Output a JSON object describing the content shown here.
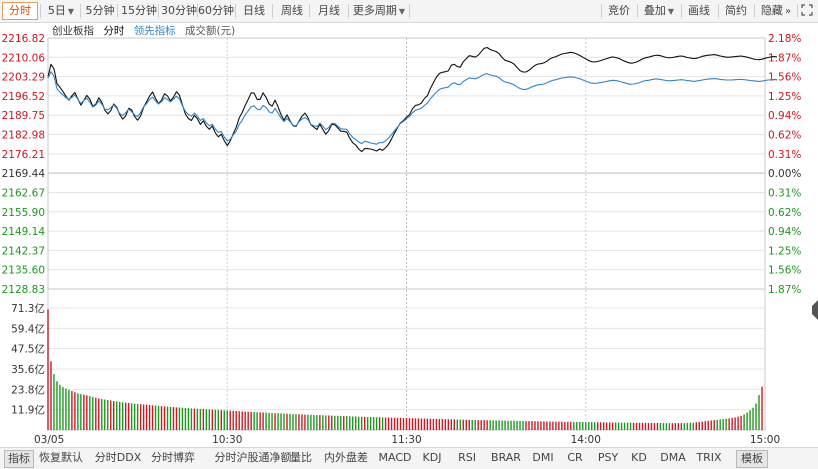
{
  "toolbar": {
    "left": [
      {
        "label": "分时",
        "active": true,
        "dropdown": false
      },
      {
        "label": "5日",
        "active": false,
        "dropdown": true
      },
      {
        "label": "5分钟",
        "active": false,
        "dropdown": false
      },
      {
        "label": "15分钟",
        "active": false,
        "dropdown": false
      },
      {
        "label": "30分钟",
        "active": false,
        "dropdown": false
      },
      {
        "label": "60分钟",
        "active": false,
        "dropdown": false
      },
      {
        "label": "日线",
        "active": false,
        "dropdown": false
      },
      {
        "label": "周线",
        "active": false,
        "dropdown": false
      },
      {
        "label": "月线",
        "active": false,
        "dropdown": false
      },
      {
        "label": "更多周期",
        "active": false,
        "dropdown": true
      }
    ],
    "right": [
      {
        "label": "竞价",
        "dropdown": false
      },
      {
        "label": "叠加",
        "dropdown": true
      },
      {
        "label": "画线",
        "dropdown": false
      },
      {
        "label": "简约",
        "dropdown": false
      },
      {
        "label": "隐藏",
        "dropdown": false
      }
    ],
    "icons": [
      "double-chevron-right-icon",
      "expand-icon"
    ]
  },
  "legend": {
    "name": "创业板指",
    "mode": "分时",
    "leading": "领先指标",
    "volume": "成交额(元)"
  },
  "colors": {
    "price_line": "#111111",
    "leading_line": "#2f86c8",
    "up": "#d4141e",
    "down": "#1a9a1a",
    "flat": "#333333",
    "grid": "#e4e4e4",
    "grid_dashed": "#cfcfcf"
  },
  "chart_data": [
    {
      "type": "line",
      "title": "",
      "time_ticks": [
        "03/05",
        "10:30",
        "11:30",
        "14:00",
        "15:00"
      ],
      "ylim": [
        2128.83,
        2216.82
      ],
      "prev_close": 2169.44,
      "y_ticks": [
        "2216.82",
        "2210.06",
        "2203.29",
        "2196.52",
        "2189.75",
        "2182.98",
        "2176.21",
        "2169.44",
        "2162.67",
        "2155.90",
        "2149.14",
        "2142.37",
        "2135.60",
        "2128.83"
      ],
      "pct_ticks": [
        "2.18%",
        "1.87%",
        "1.56%",
        "1.25%",
        "0.94%",
        "0.62%",
        "0.31%",
        "0.00%",
        "0.31%",
        "0.62%",
        "0.94%",
        "1.25%",
        "1.56%",
        "1.87%"
      ],
      "series": [
        {
          "role": "price",
          "values": [
            2203.3,
            2207.6,
            2206.0,
            2200.8,
            2199.5,
            2198.1,
            2196.4,
            2195.0,
            2196.6,
            2197.7,
            2195.4,
            2193.3,
            2194.9,
            2196.7,
            2195.4,
            2192.9,
            2193.6,
            2195.9,
            2194.3,
            2191.5,
            2190.2,
            2191.3,
            2193.7,
            2192.6,
            2190.0,
            2188.4,
            2189.5,
            2192.2,
            2191.6,
            2189.3,
            2188.0,
            2189.5,
            2192.5,
            2194.5,
            2196.5,
            2197.9,
            2195.6,
            2193.8,
            2195.0,
            2197.3,
            2196.5,
            2194.8,
            2196.1,
            2198.0,
            2196.8,
            2193.4,
            2190.2,
            2188.6,
            2187.9,
            2189.7,
            2188.5,
            2186.5,
            2187.8,
            2185.9,
            2184.8,
            2186.0,
            2183.6,
            2182.2,
            2183.1,
            2180.8,
            2179.1,
            2180.7,
            2183.2,
            2185.5,
            2188.8,
            2190.7,
            2193.2,
            2195.3,
            2197.6,
            2197.5,
            2195.3,
            2195.3,
            2197.6,
            2196.0,
            2193.7,
            2192.9,
            2195.0,
            2192.7,
            2190.0,
            2188.0,
            2189.9,
            2187.8,
            2186.1,
            2185.8,
            2187.6,
            2189.4,
            2190.5,
            2188.9,
            2186.4,
            2185.6,
            2184.7,
            2186.6,
            2184.7,
            2183.1,
            2184.4,
            2186.6,
            2186.4,
            2185.3,
            2184.1,
            2184.1,
            2183.8,
            2181.7,
            2180.1,
            2179.3,
            2177.9,
            2177.0,
            2178.1,
            2178.0,
            2177.9,
            2177.6,
            2177.2,
            2177.9,
            2177.4,
            2178.4,
            2179.6,
            2181.5,
            2183.6,
            2185.4,
            2187.1,
            2187.9,
            2189.1,
            2189.9,
            2192.0,
            2193.2,
            2193.4,
            2194.0,
            2195.6,
            2196.6,
            2199.1,
            2201.1,
            2203.1,
            2204.4,
            2204.8,
            2205.0,
            2205.3,
            2207.3,
            2207.6,
            2206.8,
            2206.6,
            2208.5,
            2209.6,
            2210.6,
            2210.4,
            2210.1,
            2210.8,
            2212.0,
            2213.2,
            2213.5,
            2212.8,
            2212.4,
            2212.1,
            2211.3,
            2210.0,
            2209.0,
            2208.7,
            2208.3,
            2207.7,
            2206.5,
            2205.4,
            2204.9,
            2204.9,
            2205.5,
            2206.4,
            2207.2,
            2207.7,
            2207.8,
            2208.1,
            2208.7,
            2209.5,
            2210.0,
            2210.3,
            2210.8,
            2211.2,
            2211.4,
            2211.6,
            2211.8,
            2211.6,
            2211.2,
            2210.7,
            2210.1,
            2209.5,
            2208.9,
            2208.5,
            2208.4,
            2208.6,
            2208.9,
            2209.3,
            2209.6,
            2209.9,
            2210.2,
            2210.0,
            2209.7,
            2209.2,
            2208.7,
            2208.3,
            2208.0,
            2208.1,
            2208.4,
            2208.9,
            2209.5,
            2209.9,
            2210.1,
            2210.4,
            2210.7,
            2210.8,
            2210.6,
            2210.3,
            2210.0,
            2209.9,
            2210.0,
            2210.2,
            2210.4,
            2210.5,
            2210.3,
            2210.0,
            2209.8,
            2209.6,
            2209.7,
            2210.0,
            2210.4,
            2210.6,
            2210.8,
            2210.9,
            2211.0,
            2210.8,
            2210.5,
            2210.3,
            2210.1,
            2210.1,
            2210.2,
            2210.3,
            2210.4,
            2210.5,
            2210.3,
            2210.1,
            2209.8,
            2209.5,
            2209.3,
            2209.2,
            2209.4,
            2209.7,
            2210.0,
            2210.2,
            2210.3,
            2210.2
          ]
        },
        {
          "role": "leading",
          "values": [
            2202.8,
            2205.0,
            2203.4,
            2199.0,
            2197.8,
            2196.9,
            2195.9,
            2195.3,
            2196.0,
            2196.8,
            2195.3,
            2193.9,
            2194.9,
            2195.7,
            2194.3,
            2192.6,
            2193.3,
            2194.8,
            2193.6,
            2191.9,
            2191.6,
            2192.4,
            2193.4,
            2192.2,
            2190.4,
            2189.6,
            2190.6,
            2191.9,
            2191.0,
            2189.9,
            2189.3,
            2190.7,
            2192.7,
            2193.8,
            2195.3,
            2196.1,
            2194.7,
            2193.7,
            2194.5,
            2195.9,
            2195.3,
            2194.4,
            2195.4,
            2196.4,
            2195.5,
            2193.1,
            2191.1,
            2190.0,
            2189.4,
            2190.5,
            2189.4,
            2187.9,
            2188.6,
            2187.1,
            2186.1,
            2186.6,
            2184.9,
            2183.8,
            2184.0,
            2182.1,
            2180.7,
            2181.3,
            2182.8,
            2184.1,
            2186.5,
            2188.0,
            2189.9,
            2191.3,
            2192.8,
            2193.0,
            2191.9,
            2191.7,
            2193.2,
            2192.5,
            2190.9,
            2190.5,
            2192.2,
            2190.5,
            2188.8,
            2187.5,
            2188.6,
            2187.5,
            2186.3,
            2186.0,
            2187.4,
            2188.4,
            2188.9,
            2188.2,
            2186.5,
            2186.1,
            2185.8,
            2187.0,
            2185.9,
            2184.7,
            2185.4,
            2186.9,
            2186.8,
            2185.9,
            2185.0,
            2184.9,
            2184.8,
            2183.2,
            2182.0,
            2181.2,
            2180.4,
            2179.8,
            2180.6,
            2180.4,
            2180.0,
            2179.8,
            2179.6,
            2180.2,
            2180.1,
            2180.8,
            2181.8,
            2183.0,
            2184.4,
            2185.6,
            2186.9,
            2187.6,
            2188.5,
            2189.3,
            2190.6,
            2191.5,
            2191.8,
            2192.2,
            2193.2,
            2194.0,
            2195.5,
            2196.7,
            2197.9,
            2198.8,
            2199.2,
            2199.4,
            2199.6,
            2200.7,
            2201.1,
            2200.6,
            2200.5,
            2201.6,
            2202.2,
            2202.8,
            2202.7,
            2202.5,
            2202.9,
            2203.5,
            2204.1,
            2204.3,
            2203.9,
            2203.6,
            2203.4,
            2202.9,
            2202.0,
            2201.4,
            2201.2,
            2200.8,
            2200.4,
            2199.7,
            2199.1,
            2198.8,
            2198.8,
            2199.2,
            2199.7,
            2200.1,
            2200.4,
            2200.5,
            2200.7,
            2201.1,
            2201.6,
            2202.0,
            2202.2,
            2202.5,
            2202.8,
            2202.9,
            2203.1,
            2203.2,
            2203.1,
            2202.8,
            2202.5,
            2202.1,
            2201.7,
            2201.3,
            2201.0,
            2200.9,
            2201.0,
            2201.2,
            2201.4,
            2201.6,
            2201.8,
            2202.0,
            2201.9,
            2201.7,
            2201.4,
            2201.1,
            2200.8,
            2200.6,
            2200.7,
            2200.9,
            2201.2,
            2201.6,
            2201.9,
            2202.0,
            2202.2,
            2202.4,
            2202.4,
            2202.3,
            2202.1,
            2201.9,
            2201.8,
            2201.9,
            2202.0,
            2202.1,
            2202.2,
            2202.1,
            2201.9,
            2201.8,
            2201.6,
            2201.7,
            2201.9,
            2202.1,
            2202.3,
            2202.4,
            2202.5,
            2202.6,
            2202.5,
            2202.3,
            2202.2,
            2202.1,
            2202.1,
            2202.1,
            2202.2,
            2202.3,
            2202.3,
            2202.2,
            2202.1,
            2201.9,
            2201.8,
            2201.7,
            2201.6,
            2201.7,
            2201.9,
            2202.1,
            2202.2,
            2202.3,
            2202.2
          ]
        }
      ]
    },
    {
      "type": "bar",
      "title": "",
      "ylabel": "成交额(元)",
      "y_ticks": [
        "71.3亿",
        "59.4亿",
        "47.5亿",
        "35.6亿",
        "23.8亿",
        "11.9亿"
      ],
      "ylim": [
        0,
        71.3
      ],
      "unit": "亿",
      "values_note_colors": "red=up, green=down",
      "values": [
        70.5,
        40.2,
        32.6,
        28.5,
        26.4,
        25.1,
        24.2,
        23.5,
        22.8,
        22.1,
        21.4,
        21.0,
        20.6,
        20.2,
        19.8,
        19.3,
        18.9,
        18.5,
        18.1,
        17.8,
        17.5,
        17.2,
        16.9,
        16.7,
        16.4,
        16.2,
        16.0,
        15.8,
        15.6,
        15.4,
        15.3,
        15.1,
        14.9,
        14.8,
        14.6,
        14.4,
        14.3,
        14.1,
        14.0,
        13.8,
        13.7,
        13.5,
        13.4,
        13.2,
        13.1,
        13.0,
        12.9,
        12.8,
        12.6,
        12.5,
        12.4,
        12.3,
        12.2,
        12.1,
        12.0,
        11.9,
        11.8,
        11.7,
        11.6,
        11.5,
        11.4,
        11.3,
        11.2,
        11.1,
        11.0,
        10.9,
        10.8,
        10.7,
        10.6,
        10.5,
        10.4,
        10.3,
        10.2,
        10.1,
        10.0,
        9.9,
        9.8,
        9.8,
        9.7,
        9.6,
        9.5,
        9.4,
        9.3,
        9.3,
        9.2,
        9.1,
        9.0,
        9.0,
        8.9,
        8.8,
        8.7,
        8.7,
        8.6,
        8.5,
        8.5,
        8.4,
        8.3,
        8.3,
        8.2,
        8.1,
        8.1,
        8.0,
        7.9,
        7.9,
        7.8,
        7.8,
        7.7,
        7.6,
        7.6,
        7.5,
        7.5,
        7.4,
        7.4,
        7.3,
        7.3,
        7.2,
        7.2,
        7.1,
        7.1,
        7.0,
        7.0,
        6.9,
        6.9,
        6.8,
        6.8,
        6.7,
        6.7,
        6.6,
        6.6,
        6.5,
        6.5,
        6.4,
        6.4,
        6.3,
        6.3,
        6.2,
        6.2,
        6.1,
        6.1,
        6.0,
        6.0,
        6.0,
        5.9,
        5.9,
        5.8,
        5.8,
        5.8,
        5.7,
        5.7,
        5.6,
        5.6,
        5.6,
        5.5,
        5.5,
        5.4,
        5.4,
        5.4,
        5.3,
        5.3,
        5.3,
        5.2,
        5.2,
        5.2,
        5.1,
        5.1,
        5.1,
        5.0,
        5.0,
        5.0,
        4.9,
        4.9,
        4.9,
        4.8,
        4.8,
        4.8,
        4.8,
        4.7,
        4.7,
        4.7,
        4.6,
        4.6,
        4.6,
        4.6,
        4.5,
        4.5,
        4.5,
        4.5,
        4.4,
        4.4,
        4.4,
        4.4,
        4.3,
        4.3,
        4.3,
        4.3,
        4.3,
        4.2,
        4.2,
        4.2,
        4.2,
        4.2,
        4.1,
        4.1,
        4.1,
        4.1,
        4.1,
        4.0,
        4.0,
        4.0,
        4.0,
        4.0,
        4.0,
        4.0,
        4.0,
        4.1,
        4.2,
        4.3,
        4.5,
        4.7,
        4.9,
        5.2,
        5.4,
        5.6,
        5.8,
        6.0,
        6.2,
        6.4,
        6.6,
        6.8,
        7.1,
        7.4,
        7.8,
        8.3,
        9.1,
        10.2,
        11.5,
        13.0,
        15.5,
        20.4,
        25.3
      ]
    }
  ],
  "bottombar": [
    {
      "label": "指标",
      "active": true
    },
    {
      "label": "恢复默认",
      "active": false
    },
    {
      "label": "分时DDX",
      "active": false
    },
    {
      "label": "分时博弈",
      "active": false
    },
    {
      "label": "分时沪股通净额",
      "active": false
    },
    {
      "label": "量比",
      "active": false
    },
    {
      "label": "内外盘差",
      "active": false
    },
    {
      "label": "MACD",
      "active": false
    },
    {
      "label": "KDJ",
      "active": false
    },
    {
      "label": "RSI",
      "active": false
    },
    {
      "label": "BRAR",
      "active": false
    },
    {
      "label": "DMI",
      "active": false
    },
    {
      "label": "CR",
      "active": false
    },
    {
      "label": "PSY",
      "active": false
    },
    {
      "label": "KD",
      "active": false
    },
    {
      "label": "DMA",
      "active": false
    },
    {
      "label": "TRIX",
      "active": false
    },
    {
      "label": "模板",
      "active": true
    }
  ]
}
